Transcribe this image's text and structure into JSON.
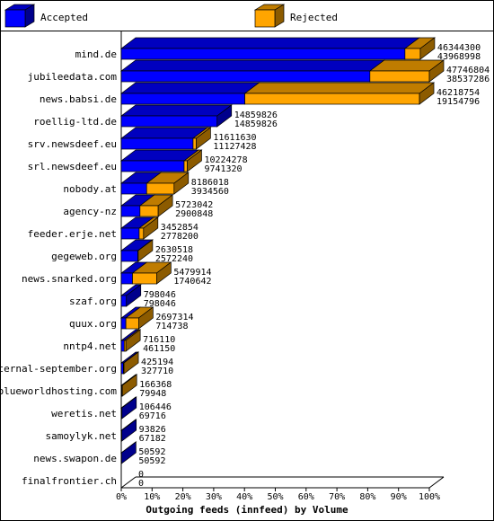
{
  "chart_data": {
    "type": "bar",
    "orientation": "horizontal",
    "stacked": true,
    "scale": "percent",
    "xlabel": "Outgoing feeds (innfeed) by Volume",
    "xlim": [
      0,
      100
    ],
    "x_ticks": [
      "0%",
      "10%",
      "20%",
      "30%",
      "40%",
      "50%",
      "60%",
      "70%",
      "80%",
      "90%",
      "100%"
    ],
    "grid": false,
    "legend_position": "top",
    "series": [
      {
        "name": "Accepted",
        "color": "#0000ff"
      },
      {
        "name": "Rejected",
        "color": "#ffa500"
      }
    ],
    "categories": [
      "mind.de",
      "jubileedata.com",
      "news.babsi.de",
      "roellig-ltd.de",
      "srv.newsdeef.eu",
      "srl.newsdeef.eu",
      "nobody.at",
      "agency-nz",
      "feeder.erje.net",
      "gegeweb.org",
      "news.snarked.org",
      "szaf.org",
      "quux.org",
      "nntp4.net",
      "eternal-september.org",
      "blueworldhosting.com",
      "weretis.net",
      "samoylyk.net",
      "news.swapon.de",
      "finalfrontier.ch"
    ],
    "offered": [
      "46344300",
      "47746804",
      "46218754",
      "14859826",
      "11611630",
      "10224278",
      "8186018",
      "5723042",
      "3452854",
      "2630518",
      "5479914",
      "798046",
      "2697314",
      "716110",
      "425194",
      "166368",
      "106446",
      "93826",
      "50592",
      "0"
    ],
    "accepted": [
      "43968998",
      "38537286",
      "19154796",
      "14859826",
      "11127428",
      "9741320",
      "3934560",
      "2900848",
      "2778200",
      "2572240",
      "1740642",
      "798046",
      "714738",
      "461150",
      "327710",
      "79948",
      "69716",
      "67182",
      "50592",
      "0"
    ]
  }
}
